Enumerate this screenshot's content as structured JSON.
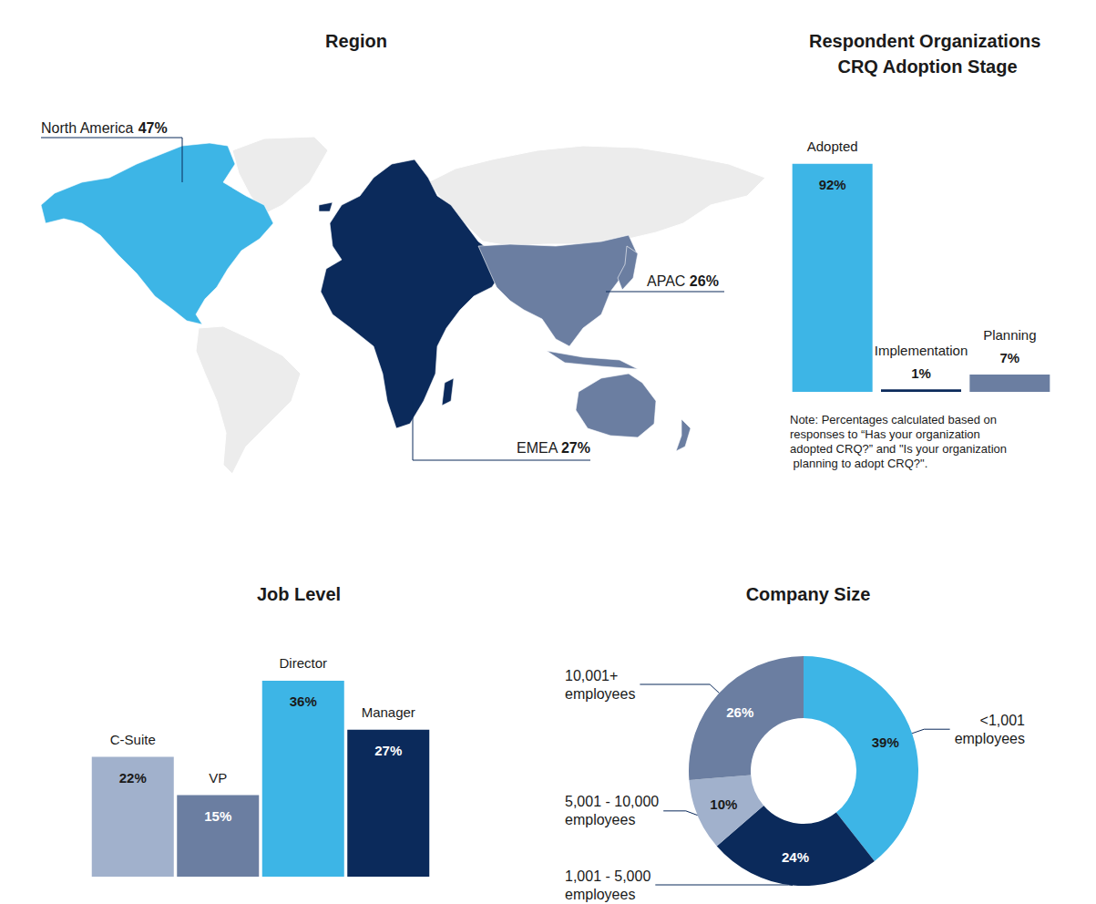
{
  "chart_data": [
    {
      "type": "map",
      "title": "Region",
      "categories": [
        "North America",
        "EMEA",
        "APAC"
      ],
      "values": [
        47,
        27,
        26
      ],
      "value_labels": [
        "47%",
        "27%",
        "26%"
      ],
      "colors": [
        "#3db5e6",
        "#0b2a5b",
        "#6b7ea1"
      ],
      "data_labels": true
    },
    {
      "type": "bar",
      "title": "Respondent Organizations CRQ Adoption Stage",
      "categories": [
        "Adopted",
        "Implementation",
        "Planning"
      ],
      "values": [
        92,
        1,
        7
      ],
      "value_labels": [
        "92%",
        "1%",
        "7%"
      ],
      "colors": [
        "#3db5e6",
        "#0b2a5b",
        "#6b7ea1"
      ],
      "data_labels": true,
      "tick_labels": false,
      "grid": false,
      "annotation": "Note: Percentages calculated based on responses to “Has your organization adopted CRQ?” and \"Is your organization planning to adopt CRQ?\"."
    },
    {
      "type": "bar",
      "title": "Job Level",
      "categories": [
        "C-Suite",
        "VP",
        "Director",
        "Manager"
      ],
      "values": [
        22,
        15,
        36,
        27
      ],
      "value_labels": [
        "22%",
        "15%",
        "36%",
        "27%"
      ],
      "colors": [
        "#a1b1cc",
        "#6b7ea1",
        "#3db5e6",
        "#0b2a5b"
      ],
      "data_labels": true,
      "tick_labels": false,
      "grid": false
    },
    {
      "type": "pie",
      "title": "Company Size",
      "categories": [
        "<1,001 employees",
        "1,001 - 5,000 employees",
        "5,001 - 10,000 employees",
        "10,001+ employees"
      ],
      "values": [
        39,
        24,
        10,
        26
      ],
      "value_labels": [
        "39%",
        "24%",
        "10%",
        "26%"
      ],
      "colors": [
        "#3db5e6",
        "#0b2a5b",
        "#a1b1cc",
        "#6b7ea1"
      ],
      "data_labels": true
    }
  ]
}
